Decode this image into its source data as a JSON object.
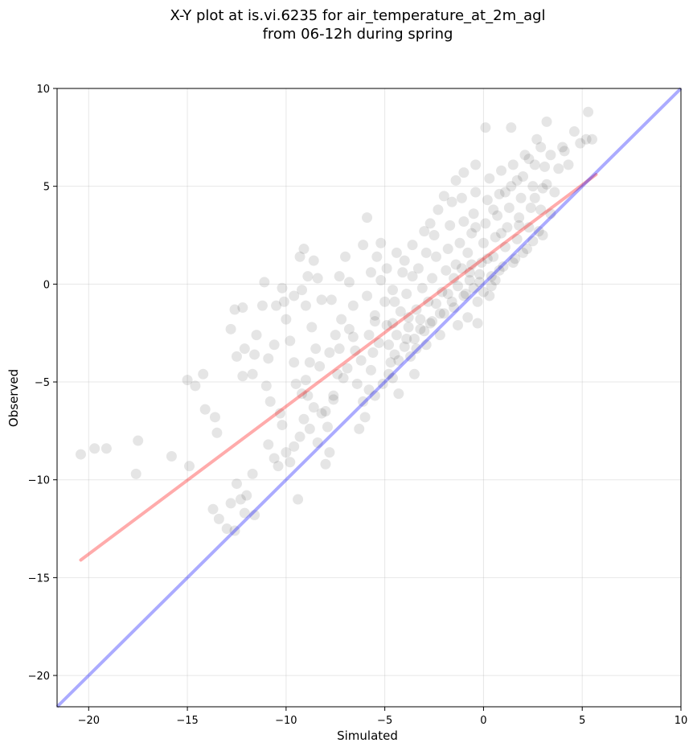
{
  "chart_data": {
    "type": "scatter",
    "title_lines": [
      "X-Y plot at is.vi.6235 for air_temperature_at_2m_agl",
      "from 06-12h during spring"
    ],
    "xlabel": "Simulated",
    "ylabel": "Observed",
    "xlim": [
      -21.6,
      10.0
    ],
    "ylim": [
      -21.6,
      10.0
    ],
    "xticks": [
      -20,
      -15,
      -10,
      -5,
      0,
      5,
      10
    ],
    "yticks": [
      -20,
      -15,
      -10,
      -5,
      0,
      5,
      10
    ],
    "xtick_labels": [
      "−20",
      "−15",
      "−10",
      "−5",
      "0",
      "5",
      "10"
    ],
    "ytick_labels": [
      "−20",
      "−15",
      "−10",
      "−5",
      "0",
      "5",
      "10"
    ],
    "grid": true,
    "legend": "none",
    "point_color": "#000000",
    "point_alpha": 0.1,
    "regression_line": {
      "color": "#ff0000",
      "x": [
        -20.4,
        5.7
      ],
      "y": [
        -14.1,
        5.6
      ]
    },
    "identity_line": {
      "color": "#0000ff",
      "x": [
        -21.6,
        10.0
      ],
      "y": [
        -21.6,
        10.0
      ]
    },
    "points": [
      [
        -20.4,
        -8.7
      ],
      [
        -19.7,
        -8.4
      ],
      [
        -19.1,
        -8.4
      ],
      [
        -17.5,
        -8.0
      ],
      [
        -17.6,
        -9.7
      ],
      [
        -15.8,
        -8.8
      ],
      [
        -15.0,
        -4.9
      ],
      [
        -14.9,
        -9.3
      ],
      [
        -14.2,
        -4.6
      ],
      [
        -14.1,
        -6.4
      ],
      [
        -14.6,
        -5.2
      ],
      [
        -13.6,
        -6.8
      ],
      [
        -13.5,
        -7.6
      ],
      [
        -13.7,
        -11.5
      ],
      [
        -13.4,
        -12.0
      ],
      [
        -13.0,
        -12.5
      ],
      [
        -12.6,
        -12.6
      ],
      [
        -12.8,
        -11.2
      ],
      [
        -12.5,
        -10.2
      ],
      [
        -12.3,
        -11.0
      ],
      [
        -12.1,
        -11.7
      ],
      [
        -12.0,
        -10.8
      ],
      [
        -11.6,
        -11.8
      ],
      [
        -11.7,
        -9.7
      ],
      [
        -12.8,
        -2.3
      ],
      [
        -12.6,
        -1.3
      ],
      [
        -12.2,
        -1.2
      ],
      [
        -12.5,
        -3.7
      ],
      [
        -12.1,
        -3.3
      ],
      [
        -12.2,
        -4.7
      ],
      [
        -11.7,
        -4.6
      ],
      [
        -11.6,
        -3.6
      ],
      [
        -11.5,
        -2.6
      ],
      [
        -11.2,
        -1.1
      ],
      [
        -11.1,
        0.1
      ],
      [
        -10.9,
        -3.8
      ],
      [
        -11.0,
        -5.2
      ],
      [
        -10.8,
        -6.0
      ],
      [
        -10.6,
        -3.1
      ],
      [
        -10.5,
        -1.1
      ],
      [
        -10.2,
        -0.2
      ],
      [
        -10.1,
        -0.9
      ],
      [
        -10.0,
        -1.8
      ],
      [
        -9.8,
        -2.9
      ],
      [
        -9.6,
        -4.0
      ],
      [
        -9.5,
        -5.1
      ],
      [
        -10.3,
        -6.6
      ],
      [
        -10.2,
        -7.2
      ],
      [
        -10.0,
        -8.6
      ],
      [
        -9.8,
        -9.1
      ],
      [
        -9.6,
        -8.3
      ],
      [
        -10.4,
        -9.3
      ],
      [
        -10.6,
        -8.9
      ],
      [
        -9.6,
        -0.6
      ],
      [
        -9.2,
        -0.3
      ],
      [
        -9.0,
        -1.1
      ],
      [
        -8.9,
        0.4
      ],
      [
        -9.3,
        1.4
      ],
      [
        -9.1,
        1.8
      ],
      [
        -8.6,
        1.2
      ],
      [
        -8.4,
        0.3
      ],
      [
        -8.2,
        -0.8
      ],
      [
        -8.7,
        -2.2
      ],
      [
        -8.5,
        -3.3
      ],
      [
        -8.8,
        -4.0
      ],
      [
        -9.0,
        -4.9
      ],
      [
        -8.9,
        -5.7
      ],
      [
        -8.6,
        -6.3
      ],
      [
        -9.1,
        -6.9
      ],
      [
        -8.8,
        -7.4
      ],
      [
        -8.4,
        -8.1
      ],
      [
        -9.4,
        -11.0
      ],
      [
        -8.0,
        -9.2
      ],
      [
        -7.8,
        -8.6
      ],
      [
        -7.9,
        -7.3
      ],
      [
        -8.0,
        -6.5
      ],
      [
        -7.6,
        -5.7
      ],
      [
        -7.4,
        -4.6
      ],
      [
        -7.8,
        -3.5
      ],
      [
        -7.5,
        -2.6
      ],
      [
        -7.2,
        -1.8
      ],
      [
        -7.7,
        -0.8
      ],
      [
        -7.3,
        0.4
      ],
      [
        -7.0,
        1.4
      ],
      [
        -6.8,
        0.1
      ],
      [
        -6.6,
        -1.1
      ],
      [
        -6.8,
        -2.3
      ],
      [
        -6.5,
        -3.4
      ],
      [
        -6.9,
        -4.3
      ],
      [
        -6.4,
        -5.1
      ],
      [
        -6.1,
        -6.0
      ],
      [
        -6.0,
        -6.8
      ],
      [
        -6.3,
        -7.4
      ],
      [
        -5.8,
        -5.4
      ],
      [
        -5.7,
        -4.4
      ],
      [
        -5.6,
        -3.5
      ],
      [
        -5.8,
        -2.6
      ],
      [
        -5.5,
        -1.6
      ],
      [
        -5.9,
        -0.6
      ],
      [
        -5.7,
        0.6
      ],
      [
        -5.4,
        1.4
      ],
      [
        -5.2,
        2.1
      ],
      [
        -6.1,
        2.0
      ],
      [
        -5.9,
        3.4
      ],
      [
        -5.2,
        0.2
      ],
      [
        -5.0,
        -0.9
      ],
      [
        -4.9,
        -2.1
      ],
      [
        -4.8,
        -3.1
      ],
      [
        -4.7,
        -4.0
      ],
      [
        -4.6,
        -4.8
      ],
      [
        -4.3,
        -5.6
      ],
      [
        -4.5,
        -3.6
      ],
      [
        -4.4,
        -2.6
      ],
      [
        -4.2,
        -1.4
      ],
      [
        -4.6,
        -0.3
      ],
      [
        -4.9,
        0.8
      ],
      [
        -4.4,
        1.6
      ],
      [
        -4.1,
        0.6
      ],
      [
        -3.9,
        -0.5
      ],
      [
        -3.8,
        -1.7
      ],
      [
        -3.9,
        -2.8
      ],
      [
        -3.7,
        -3.7
      ],
      [
        -3.5,
        -4.6
      ],
      [
        -3.4,
        -3.3
      ],
      [
        -3.2,
        -2.3
      ],
      [
        -3.4,
        -1.3
      ],
      [
        -3.1,
        -0.2
      ],
      [
        -3.3,
        0.8
      ],
      [
        -2.9,
        -3.1
      ],
      [
        -2.7,
        -2.0
      ],
      [
        -2.8,
        -0.9
      ],
      [
        -2.6,
        0.3
      ],
      [
        -2.4,
        1.4
      ],
      [
        -2.5,
        2.5
      ],
      [
        -2.2,
        -2.6
      ],
      [
        -2.0,
        -1.5
      ],
      [
        -2.1,
        -0.4
      ],
      [
        -1.9,
        0.7
      ],
      [
        -1.8,
        1.8
      ],
      [
        -1.7,
        3.0
      ],
      [
        -1.6,
        4.2
      ],
      [
        -1.5,
        -1.2
      ],
      [
        -1.3,
        -0.1
      ],
      [
        -1.4,
        1.0
      ],
      [
        -1.2,
        2.1
      ],
      [
        -1.0,
        3.2
      ],
      [
        -1.1,
        4.4
      ],
      [
        -0.9,
        -0.5
      ],
      [
        -0.7,
        0.6
      ],
      [
        -0.8,
        1.6
      ],
      [
        -0.6,
        2.6
      ],
      [
        -0.5,
        3.6
      ],
      [
        -0.4,
        4.7
      ],
      [
        -0.3,
        -0.9
      ],
      [
        -0.2,
        0.1
      ],
      [
        -0.1,
        1.1
      ],
      [
        0.0,
        2.1
      ],
      [
        0.1,
        3.1
      ],
      [
        0.2,
        4.3
      ],
      [
        0.3,
        5.4
      ],
      [
        0.4,
        0.4
      ],
      [
        0.5,
        1.4
      ],
      [
        0.6,
        2.4
      ],
      [
        0.7,
        3.5
      ],
      [
        0.8,
        4.6
      ],
      [
        0.9,
        5.8
      ],
      [
        1.0,
        0.9
      ],
      [
        1.1,
        1.9
      ],
      [
        1.2,
        2.9
      ],
      [
        1.3,
        3.9
      ],
      [
        1.4,
        5.0
      ],
      [
        1.5,
        6.1
      ],
      [
        1.6,
        1.3
      ],
      [
        1.7,
        2.3
      ],
      [
        1.8,
        3.4
      ],
      [
        1.9,
        4.4
      ],
      [
        2.0,
        5.5
      ],
      [
        2.1,
        6.6
      ],
      [
        2.2,
        1.8
      ],
      [
        2.3,
        2.9
      ],
      [
        2.4,
        3.9
      ],
      [
        2.5,
        5.0
      ],
      [
        2.6,
        6.1
      ],
      [
        2.7,
        7.4
      ],
      [
        2.8,
        2.7
      ],
      [
        2.9,
        3.8
      ],
      [
        3.0,
        4.9
      ],
      [
        3.1,
        6.0
      ],
      [
        3.2,
        8.3
      ],
      [
        3.4,
        3.6
      ],
      [
        3.6,
        4.7
      ],
      [
        3.8,
        5.9
      ],
      [
        4.0,
        7.0
      ],
      [
        4.3,
        6.1
      ],
      [
        4.6,
        7.8
      ],
      [
        4.9,
        7.2
      ],
      [
        5.2,
        7.4
      ],
      [
        5.3,
        8.8
      ],
      [
        5.5,
        7.4
      ],
      [
        0.1,
        8.0
      ],
      [
        1.4,
        8.0
      ],
      [
        -0.4,
        6.1
      ],
      [
        -1.0,
        5.7
      ],
      [
        -1.4,
        5.3
      ],
      [
        -2.0,
        4.5
      ],
      [
        -2.3,
        3.8
      ],
      [
        -2.7,
        3.1
      ],
      [
        -3.0,
        2.7
      ],
      [
        -3.6,
        2.0
      ],
      [
        -4.0,
        1.2
      ],
      [
        -0.3,
        -2.0
      ],
      [
        0.3,
        -0.6
      ],
      [
        0.6,
        0.2
      ],
      [
        0.0,
        -0.4
      ],
      [
        -0.5,
        -0.2
      ],
      [
        -1.0,
        -0.6
      ],
      [
        -1.6,
        -0.9
      ],
      [
        -2.2,
        -1.5
      ],
      [
        -2.6,
        -1.9
      ],
      [
        -3.0,
        -2.4
      ],
      [
        -3.5,
        -2.8
      ],
      [
        -4.0,
        -3.2
      ],
      [
        -4.3,
        -3.9
      ],
      [
        -4.8,
        -4.6
      ],
      [
        -5.1,
        -5.1
      ],
      [
        -5.5,
        -5.7
      ],
      [
        -1.3,
        -2.1
      ],
      [
        -0.8,
        -1.7
      ],
      [
        0.8,
        0.7
      ],
      [
        1.5,
        1.1
      ],
      [
        2.0,
        1.6
      ],
      [
        2.5,
        2.2
      ],
      [
        3.0,
        2.5
      ],
      [
        -0.2,
        0.5
      ],
      [
        0.4,
        -0.1
      ],
      [
        -0.7,
        0.2
      ],
      [
        -1.8,
        -0.5
      ],
      [
        -2.4,
        -1.0
      ],
      [
        -3.2,
        -1.8
      ],
      [
        -3.8,
        -2.2
      ],
      [
        -4.6,
        -2.0
      ],
      [
        -5.3,
        -3.0
      ],
      [
        -6.2,
        -3.9
      ],
      [
        -7.1,
        -4.8
      ],
      [
        -7.6,
        -5.9
      ],
      [
        -8.2,
        -6.6
      ],
      [
        -9.3,
        -7.8
      ],
      [
        -10.9,
        -8.2
      ],
      [
        0.9,
        2.6
      ],
      [
        1.8,
        3.0
      ],
      [
        2.6,
        4.4
      ],
      [
        3.2,
        5.1
      ],
      [
        0.2,
        1.3
      ],
      [
        -0.6,
        1.0
      ],
      [
        -1.1,
        0.8
      ],
      [
        -1.5,
        0.3
      ],
      [
        -0.4,
        2.9
      ],
      [
        0.5,
        3.8
      ],
      [
        1.1,
        4.7
      ],
      [
        1.7,
        5.3
      ],
      [
        2.3,
        6.4
      ],
      [
        2.9,
        7.0
      ],
      [
        3.4,
        6.6
      ],
      [
        4.1,
        6.8
      ],
      [
        -2.9,
        1.6
      ],
      [
        -3.6,
        0.4
      ],
      [
        -4.5,
        -0.9
      ],
      [
        -5.5,
        -1.9
      ],
      [
        -6.6,
        -2.7
      ],
      [
        -7.3,
        -3.3
      ],
      [
        -8.3,
        -4.2
      ],
      [
        -9.2,
        -5.6
      ]
    ]
  }
}
